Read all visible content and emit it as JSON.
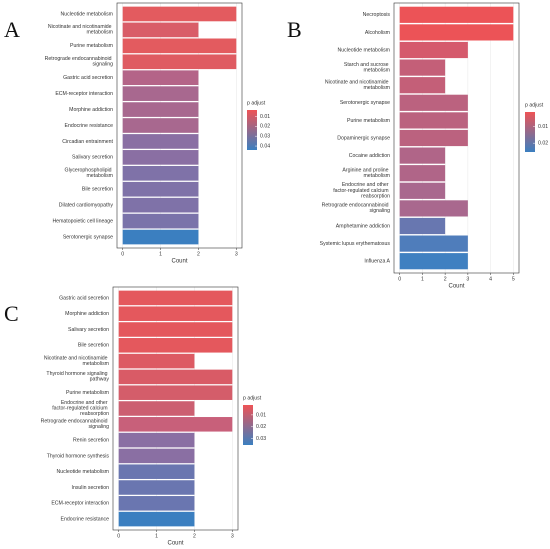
{
  "chart_data": [
    {
      "type": "bar",
      "panel": "A",
      "x_label": "Count",
      "categories": [
        "Nucleotide metabolism",
        "Nicotinate and nicotinamide metabolism",
        "Purine metabolism",
        "Retrograde endocannabinoid signaling",
        "Gastric acid secretion",
        "ECM-receptor interaction",
        "Morphine addiction",
        "Endocrine resistance",
        "Circadian entrainment",
        "Salivary secretion",
        "Glycerophospholipid metabolism",
        "Bile secretion",
        "Dilated cardiomyopathy",
        "Hematopoietic cell lineage",
        "Serotonergic synapse"
      ],
      "values": [
        3,
        2,
        3,
        3,
        2,
        2,
        2,
        2,
        2,
        2,
        2,
        2,
        2,
        2,
        2
      ],
      "colors": [
        "#e35b5f",
        "#d95d68",
        "#e35b5f",
        "#df5b62",
        "#b46488",
        "#a8688f",
        "#a8688f",
        "#a8688f",
        "#8a6fa3",
        "#8a6fa3",
        "#7f72a8",
        "#7f72a8",
        "#7f72a8",
        "#7a73aa",
        "#3b7fc0"
      ],
      "xlim": [
        -0.15,
        3.15
      ],
      "xticks": [
        0,
        1,
        2,
        3
      ],
      "grid": true,
      "legend": {
        "title": "p adjust",
        "ticks": [
          0.01,
          0.02,
          0.03,
          0.04
        ],
        "lim": [
          0.0035,
          0.044
        ],
        "colors": [
          "#ee5356",
          "#3b7fc0"
        ]
      }
    },
    {
      "type": "bar",
      "panel": "B",
      "x_label": "Count",
      "categories": [
        "Necroptosis",
        "Alcoholism",
        "Nucleotide metabolism",
        "Starch and sucrose metabolism",
        "Nicotinate and nicotinamide metabolism",
        "Serotonergic synapse",
        "Purine metabolism",
        "Dopaminergic synapse",
        "Cocaine addiction",
        "Arginine and proline metabolism",
        "Endocrine and other factor-regulated calcium reabsorption",
        "Retrograde endocannabinoid signaling",
        "Amphetamine addiction",
        "Systemic lupus erythematosus",
        "Influenza A"
      ],
      "values": [
        5,
        5,
        3,
        2,
        2,
        3,
        3,
        3,
        2,
        2,
        2,
        3,
        2,
        3,
        3
      ],
      "colors": [
        "#ec5357",
        "#ec5357",
        "#d55a6c",
        "#c45f78",
        "#c45f78",
        "#bb627f",
        "#bb627f",
        "#bb627f",
        "#b06588",
        "#b06588",
        "#a9688e",
        "#a9688e",
        "#6877b0",
        "#4f7dbb",
        "#3f80c1"
      ],
      "xlim": [
        -0.25,
        5.25
      ],
      "xticks": [
        0,
        1,
        2,
        3,
        4,
        5
      ],
      "grid": true,
      "legend": {
        "title": "p adjust",
        "ticks": [
          0.01,
          0.02
        ],
        "lim": [
          0.0013,
          0.0253
        ],
        "colors": [
          "#ee5356",
          "#3b7fc0"
        ]
      }
    },
    {
      "type": "bar",
      "panel": "C",
      "x_label": "Count",
      "categories": [
        "Gastric acid secretion",
        "Morphine addiction",
        "Salivary secretion",
        "Bile secretion",
        "Nicotinate and nicotinamide metabolism",
        "Thyroid hormone signaling pathway",
        "Purine metabolism",
        "Endocrine and other factor-regulated calcium reabsorption",
        "Retrograde endocannabinoid signaling",
        "Renin secretion",
        "Thyroid hormone synthesis",
        "Nucleotide metabolism",
        "Insulin secretion",
        "ECM-receptor interaction",
        "Endocrine resistance"
      ],
      "values": [
        3,
        3,
        3,
        3,
        2,
        3,
        3,
        2,
        3,
        2,
        2,
        2,
        2,
        2,
        2
      ],
      "colors": [
        "#e4585d",
        "#e4585d",
        "#e4585d",
        "#e4585d",
        "#dd5a63",
        "#d95b66",
        "#d45d6a",
        "#cc5f71",
        "#c8607a",
        "#8a6fa3",
        "#8a6fa3",
        "#6a76b0",
        "#6a76b0",
        "#6a76b0",
        "#3b7fc0"
      ],
      "xlim": [
        -0.15,
        3.15
      ],
      "xticks": [
        0,
        1,
        2,
        3
      ],
      "grid": true,
      "legend": {
        "title": "p adjust",
        "ticks": [
          0.01,
          0.02,
          0.03
        ],
        "lim": [
          0.0017,
          0.0353
        ],
        "colors": [
          "#ee5356",
          "#3b7fc0"
        ]
      }
    }
  ]
}
